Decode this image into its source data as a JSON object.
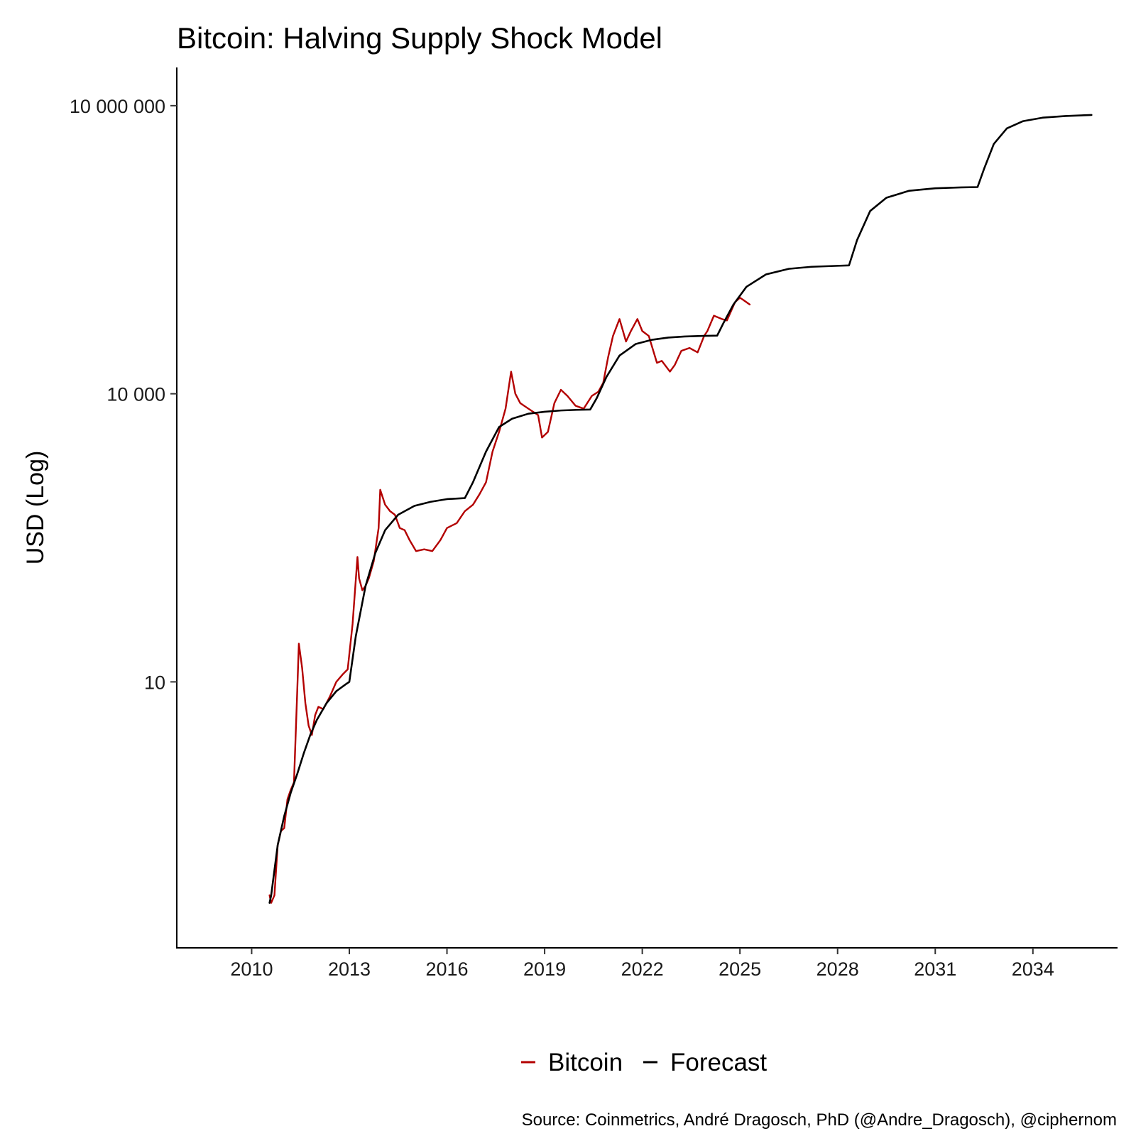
{
  "chart_data": {
    "type": "line",
    "title": "Bitcoin: Halving Supply Shock Model",
    "xlabel": "",
    "ylabel": "USD (Log)",
    "yscale": "log10",
    "xlim": [
      2007.7,
      2036.6
    ],
    "ylim": [
      0.017,
      25000000
    ],
    "x_ticks": [
      2010,
      2013,
      2016,
      2019,
      2022,
      2025,
      2028,
      2031,
      2034
    ],
    "x_tick_labels": [
      "2010",
      "2013",
      "2016",
      "2019",
      "2022",
      "2025",
      "2028",
      "2031",
      "2034"
    ],
    "y_ticks": [
      10,
      10000,
      10000000
    ],
    "y_tick_labels": [
      "10",
      "10 000",
      "10 000 000"
    ],
    "grid": false,
    "legend_position": "bottom",
    "series": [
      {
        "name": "Bitcoin",
        "color": "#b30000",
        "x": [
          2010.55,
          2010.6,
          2010.7,
          2010.8,
          2010.9,
          2011.0,
          2011.1,
          2011.2,
          2011.3,
          2011.4,
          2011.45,
          2011.55,
          2011.65,
          2011.75,
          2011.85,
          2011.95,
          2012.05,
          2012.2,
          2012.4,
          2012.6,
          2012.8,
          2012.95,
          2013.1,
          2013.25,
          2013.3,
          2013.4,
          2013.5,
          2013.6,
          2013.75,
          2013.9,
          2013.95,
          2014.1,
          2014.25,
          2014.4,
          2014.55,
          2014.7,
          2014.85,
          2015.05,
          2015.3,
          2015.55,
          2015.8,
          2016.0,
          2016.3,
          2016.55,
          2016.8,
          2017.0,
          2017.2,
          2017.4,
          2017.6,
          2017.8,
          2017.97,
          2018.1,
          2018.25,
          2018.5,
          2018.8,
          2018.92,
          2019.1,
          2019.3,
          2019.5,
          2019.7,
          2019.95,
          2020.2,
          2020.45,
          2020.65,
          2020.8,
          2020.95,
          2021.1,
          2021.3,
          2021.5,
          2021.65,
          2021.85,
          2022.0,
          2022.2,
          2022.45,
          2022.6,
          2022.85,
          2023.0,
          2023.2,
          2023.45,
          2023.7,
          2023.9,
          2024.0,
          2024.2,
          2024.45,
          2024.6,
          2024.85,
          2025.0,
          2025.1,
          2025.3
        ],
        "values": [
          0.06,
          0.05,
          0.06,
          0.2,
          0.28,
          0.3,
          0.6,
          0.75,
          0.9,
          8.0,
          25.0,
          14.0,
          6.0,
          3.5,
          2.8,
          4.5,
          5.5,
          5.2,
          7.0,
          10.0,
          12.0,
          13.5,
          40.0,
          200.0,
          120.0,
          90.0,
          100.0,
          120.0,
          180.0,
          400.0,
          1000.0,
          700.0,
          600.0,
          550.0,
          400.0,
          380.0,
          300.0,
          230.0,
          240.0,
          230.0,
          300.0,
          400.0,
          450.0,
          600.0,
          700.0,
          900.0,
          1200.0,
          2500.0,
          4000.0,
          7000.0,
          17000.0,
          10000.0,
          8000.0,
          7000.0,
          6000.0,
          3500.0,
          4000.0,
          8000.0,
          11000.0,
          9500.0,
          7500.0,
          7000.0,
          9500.0,
          10500.0,
          13000.0,
          24000.0,
          40000.0,
          60000.0,
          35000.0,
          45000.0,
          60000.0,
          45000.0,
          40000.0,
          21000.0,
          22000.0,
          17000.0,
          20000.0,
          28000.0,
          30000.0,
          27000.0,
          40000.0,
          45000.0,
          65000.0,
          60000.0,
          58000.0,
          90000.0,
          100000.0,
          95000.0,
          85000.0
        ]
      },
      {
        "name": "Forecast",
        "color": "#000000",
        "x": [
          2010.55,
          2010.6,
          2010.8,
          2011.0,
          2011.2,
          2011.4,
          2011.6,
          2011.8,
          2012.0,
          2012.3,
          2012.6,
          2012.9,
          2013.0,
          2013.2,
          2013.5,
          2013.8,
          2014.1,
          2014.5,
          2015.0,
          2015.5,
          2016.0,
          2016.55,
          2016.8,
          2017.2,
          2017.6,
          2018.0,
          2018.5,
          2019.0,
          2019.5,
          2020.0,
          2020.4,
          2020.6,
          2020.9,
          2021.3,
          2021.8,
          2022.3,
          2022.8,
          2023.3,
          2023.8,
          2024.3,
          2024.5,
          2024.8,
          2025.2,
          2025.8,
          2026.5,
          2027.2,
          2028.0,
          2028.35,
          2028.6,
          2029.0,
          2029.5,
          2030.2,
          2031.0,
          2031.8,
          2032.3,
          2032.5,
          2032.8,
          2033.2,
          2033.7,
          2034.3,
          2035.0,
          2035.8
        ],
        "values": [
          0.05,
          0.06,
          0.2,
          0.4,
          0.7,
          1.1,
          1.8,
          2.8,
          4.0,
          6.0,
          8.0,
          9.5,
          10.0,
          30.0,
          100.0,
          220.0,
          380.0,
          550.0,
          680.0,
          750.0,
          800.0,
          820.0,
          1200.0,
          2500.0,
          4500.0,
          5500.0,
          6200.0,
          6500.0,
          6700.0,
          6800.0,
          6850.0,
          9000.0,
          15000.0,
          25000.0,
          33000.0,
          36500.0,
          38500.0,
          39500.0,
          40000.0,
          40300.0,
          55000.0,
          85000.0,
          130000.0,
          175000.0,
          200000.0,
          210000.0,
          215000.0,
          217000.0,
          400000.0,
          800000.0,
          1100000.0,
          1300000.0,
          1380000.0,
          1410000.0,
          1420000.0,
          2200000.0,
          4000000.0,
          5800000.0,
          6900000.0,
          7500000.0,
          7800000.0,
          8000000.0
        ]
      }
    ],
    "caption": "Source: Coinmetrics, André Dragosch, PhD (@Andre_Dragosch), @ciphernom"
  }
}
